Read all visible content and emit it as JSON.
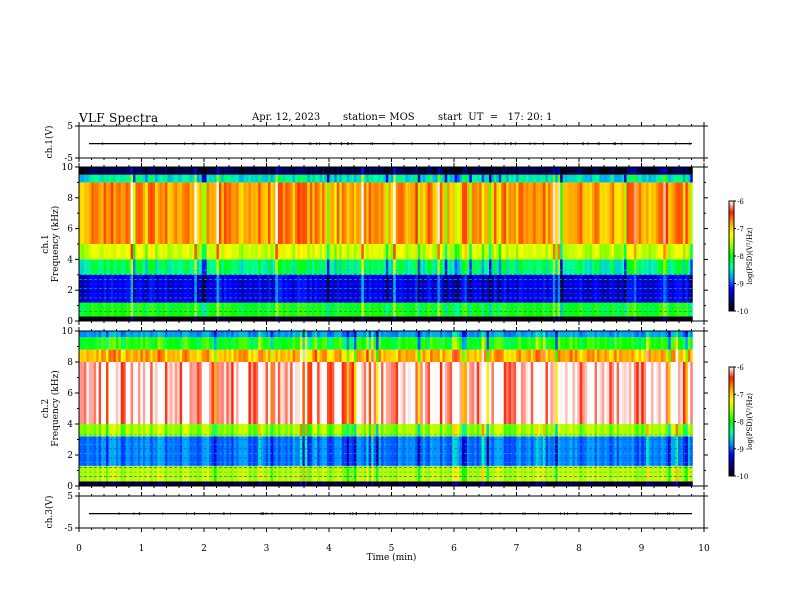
{
  "header": {
    "title": "VLF Spectra",
    "date": "Apr. 12, 2023",
    "station": "station= MOS",
    "start": "start  UT  =   17: 20: 1"
  },
  "chart_data": {
    "type": "heatmap",
    "xlabel": "Time  (min)",
    "xlim": [
      0,
      10
    ],
    "xticks": [
      "0",
      "1",
      "2",
      "3",
      "4",
      "5",
      "6",
      "7",
      "8",
      "9",
      "10"
    ],
    "panels": [
      {
        "id": "ch1-waveform",
        "ylabel": "ch.1(V)",
        "ylim": [
          -5,
          5
        ],
        "yticks": [
          "5",
          "-5"
        ],
        "trace_level": -0.5
      },
      {
        "id": "ch1-spectrogram",
        "ylabel": "ch.1\nFrequency (kHz)",
        "ylabel_parts": [
          "ch.1",
          "Frequency (kHz)"
        ],
        "ylim": [
          0,
          10
        ],
        "yticks": [
          "0",
          "2",
          "4",
          "6",
          "8",
          "10"
        ],
        "data_end_min": 9.82,
        "bands_khz": [
          {
            "from": 0.0,
            "to": 0.3,
            "level": -10
          },
          {
            "from": 0.3,
            "to": 1.2,
            "level": -8
          },
          {
            "from": 1.2,
            "to": 3.0,
            "level": -9.3
          },
          {
            "from": 3.0,
            "to": 4.0,
            "level": -8.3
          },
          {
            "from": 4.0,
            "to": 5.0,
            "level": -7.4
          },
          {
            "from": 5.0,
            "to": 9.0,
            "level": -6.8
          },
          {
            "from": 9.0,
            "to": 9.5,
            "level": -8.5
          },
          {
            "from": 9.5,
            "to": 10.0,
            "level": -9.8
          }
        ],
        "colorbar": {
          "label": "log(PSD)(V²/Hz)",
          "ticks": [
            "-6",
            "-7",
            "-8",
            "-9",
            "-10"
          ],
          "range": [
            -10,
            -6
          ]
        }
      },
      {
        "id": "ch2-spectrogram",
        "ylabel": "ch.2\nFrequency (kHz)",
        "ylabel_parts": [
          "ch.2",
          "Frequency (kHz)"
        ],
        "ylim": [
          0,
          10
        ],
        "yticks": [
          "0",
          "2",
          "4",
          "6",
          "8",
          "10"
        ],
        "data_end_min": 9.82,
        "bands_khz": [
          {
            "from": 0.0,
            "to": 0.3,
            "level": -9.8
          },
          {
            "from": 0.3,
            "to": 1.3,
            "level": -7.5
          },
          {
            "from": 1.3,
            "to": 3.2,
            "level": -8.9
          },
          {
            "from": 3.2,
            "to": 4.0,
            "level": -7.6
          },
          {
            "from": 4.0,
            "to": 8.0,
            "level": -6.1
          },
          {
            "from": 8.0,
            "to": 8.8,
            "level": -6.9
          },
          {
            "from": 8.8,
            "to": 9.6,
            "level": -8.0
          },
          {
            "from": 9.6,
            "to": 10.0,
            "level": -8.8
          }
        ],
        "colorbar": {
          "label": "log(PSD)(V²/Hz)",
          "ticks": [
            "-6",
            "-7",
            "-8",
            "-9",
            "-10"
          ],
          "range": [
            -10,
            -6
          ]
        }
      },
      {
        "id": "ch3-waveform",
        "ylabel": "ch.3(V)",
        "ylim": [
          -5,
          5
        ],
        "yticks": [
          "5",
          "-5"
        ],
        "trace_level": -0.5
      }
    ],
    "colormap": [
      "#000000",
      "#000080",
      "#0000ff",
      "#00a0ff",
      "#00ffa0",
      "#00ff00",
      "#a0ff00",
      "#ffff00",
      "#ffa000",
      "#ff2000",
      "#ffffff"
    ]
  }
}
